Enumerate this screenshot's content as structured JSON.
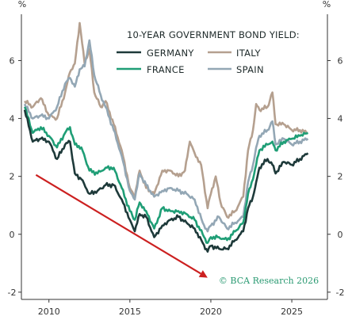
{
  "chart_data": {
    "type": "line",
    "title": "10-YEAR GOVERNMENT BOND YIELD:",
    "unit_left": "%",
    "unit_right": "%",
    "credit": "© BCA Research 2026",
    "xlim": [
      2008.3,
      2027.2
    ],
    "ylim": [
      -2.25,
      7.6
    ],
    "x_ticks": [
      "2010",
      "2015",
      "2020",
      "2025"
    ],
    "y_ticks": [
      "-2",
      "0",
      "2",
      "4",
      "6"
    ],
    "grid": false,
    "legend_position": "top-right",
    "series_colors": {
      "GERMANY": "#1e3a3a",
      "FRANCE": "#1f9e76",
      "ITALY": "#b5a08f",
      "SPAIN": "#93a7b5"
    },
    "arrow_color": "#cc2020",
    "credit_color": "#2a9a72",
    "arrow": {
      "from": [
        2009.2,
        2.05
      ],
      "to": [
        2019.8,
        -1.5
      ]
    },
    "series": [
      {
        "name": "GERMANY",
        "x": [
          2008.5,
          2009.0,
          2009.5,
          2010.0,
          2010.5,
          2011.0,
          2011.3,
          2011.6,
          2012.0,
          2012.5,
          2013.0,
          2013.5,
          2014.0,
          2014.5,
          2015.0,
          2015.3,
          2015.6,
          2016.0,
          2016.5,
          2017.0,
          2017.5,
          2018.0,
          2018.5,
          2019.0,
          2019.5,
          2019.8,
          2020.0,
          2020.5,
          2021.0,
          2021.5,
          2022.0,
          2022.3,
          2022.6,
          2022.8,
          2023.0,
          2023.5,
          2023.8,
          2024.0,
          2024.5,
          2025.0,
          2025.5,
          2026.0
        ],
        "values": [
          4.3,
          3.2,
          3.3,
          3.2,
          2.6,
          3.1,
          3.2,
          2.1,
          1.9,
          1.4,
          1.5,
          1.7,
          1.7,
          1.2,
          0.5,
          0.1,
          0.7,
          0.6,
          -0.1,
          0.3,
          0.5,
          0.6,
          0.4,
          0.2,
          -0.3,
          -0.6,
          -0.4,
          -0.5,
          -0.5,
          -0.2,
          0.1,
          0.9,
          1.3,
          1.8,
          2.3,
          2.6,
          2.4,
          2.1,
          2.5,
          2.4,
          2.6,
          2.8
        ]
      },
      {
        "name": "FRANCE",
        "x": [
          2008.5,
          2009.0,
          2009.5,
          2010.0,
          2010.5,
          2011.0,
          2011.3,
          2011.6,
          2012.0,
          2012.5,
          2013.0,
          2013.5,
          2014.0,
          2014.5,
          2015.0,
          2015.3,
          2015.6,
          2016.0,
          2016.5,
          2017.0,
          2017.5,
          2018.0,
          2018.5,
          2019.0,
          2019.5,
          2019.8,
          2020.0,
          2020.5,
          2021.0,
          2021.5,
          2022.0,
          2022.3,
          2022.6,
          2022.8,
          2023.0,
          2023.5,
          2023.8,
          2024.0,
          2024.5,
          2025.0,
          2025.5,
          2026.0
        ],
        "values": [
          4.4,
          3.5,
          3.7,
          3.4,
          3.0,
          3.5,
          3.7,
          3.1,
          3.0,
          2.2,
          2.1,
          2.3,
          2.3,
          1.6,
          0.8,
          0.5,
          1.1,
          0.8,
          0.2,
          0.9,
          0.8,
          0.8,
          0.7,
          0.5,
          0.0,
          -0.3,
          -0.1,
          -0.1,
          -0.2,
          0.1,
          0.4,
          1.4,
          1.9,
          2.4,
          2.9,
          3.1,
          3.2,
          2.9,
          3.2,
          3.3,
          3.4,
          3.5
        ]
      },
      {
        "name": "ITALY",
        "x": [
          2008.5,
          2009.0,
          2009.5,
          2010.0,
          2010.5,
          2011.0,
          2011.3,
          2011.6,
          2011.9,
          2012.2,
          2012.5,
          2012.8,
          2013.2,
          2013.5,
          2014.0,
          2014.5,
          2015.0,
          2015.3,
          2015.6,
          2016.0,
          2016.5,
          2017.0,
          2017.5,
          2018.0,
          2018.4,
          2018.7,
          2019.0,
          2019.4,
          2019.8,
          2020.0,
          2020.3,
          2020.6,
          2021.0,
          2021.5,
          2022.0,
          2022.3,
          2022.6,
          2022.8,
          2023.0,
          2023.5,
          2023.8,
          2024.0,
          2024.5,
          2025.0,
          2025.5,
          2026.0
        ],
        "values": [
          4.6,
          4.4,
          4.7,
          4.1,
          4.0,
          4.9,
          5.6,
          5.9,
          7.3,
          5.9,
          6.4,
          4.9,
          4.4,
          4.6,
          3.8,
          2.9,
          1.6,
          1.3,
          2.2,
          1.6,
          1.4,
          2.2,
          2.2,
          2.0,
          2.2,
          3.2,
          2.8,
          2.4,
          0.9,
          1.4,
          2.0,
          1.1,
          0.6,
          0.8,
          1.3,
          2.9,
          3.6,
          4.5,
          4.3,
          4.4,
          4.9,
          3.8,
          3.8,
          3.6,
          3.6,
          3.5
        ]
      },
      {
        "name": "SPAIN",
        "x": [
          2008.5,
          2009.0,
          2009.5,
          2010.0,
          2010.5,
          2011.0,
          2011.3,
          2011.6,
          2011.9,
          2012.2,
          2012.5,
          2012.8,
          2013.2,
          2013.5,
          2014.0,
          2014.5,
          2015.0,
          2015.3,
          2015.6,
          2016.0,
          2016.5,
          2017.0,
          2017.5,
          2018.0,
          2018.5,
          2019.0,
          2019.5,
          2019.8,
          2020.0,
          2020.5,
          2021.0,
          2021.5,
          2022.0,
          2022.3,
          2022.6,
          2022.8,
          2023.0,
          2023.5,
          2023.8,
          2024.0,
          2024.5,
          2025.0,
          2025.5,
          2026.0
        ],
        "values": [
          4.5,
          4.0,
          4.1,
          4.0,
          4.4,
          5.2,
          5.4,
          5.1,
          5.7,
          5.8,
          6.7,
          5.5,
          4.8,
          4.4,
          3.6,
          2.7,
          1.5,
          1.2,
          2.1,
          1.7,
          1.3,
          1.5,
          1.6,
          1.5,
          1.4,
          1.2,
          0.4,
          0.1,
          0.3,
          0.6,
          0.2,
          0.4,
          0.6,
          1.8,
          2.4,
          3.0,
          3.4,
          3.6,
          3.9,
          3.1,
          3.3,
          3.1,
          3.2,
          3.3
        ]
      }
    ]
  }
}
